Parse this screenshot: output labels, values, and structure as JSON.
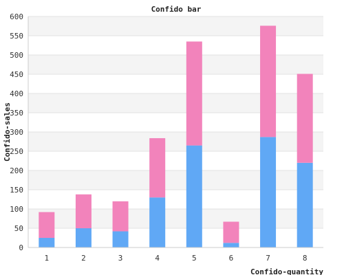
{
  "chart_data": {
    "type": "bar",
    "stacked": true,
    "title": "Confido bar",
    "xlabel": "Confido-quantity",
    "ylabel": "Confido-sales",
    "categories": [
      "1",
      "2",
      "3",
      "4",
      "5",
      "6",
      "7",
      "8"
    ],
    "series": [
      {
        "values": [
          25,
          50,
          42,
          130,
          265,
          12,
          287,
          220
        ],
        "color": "#60a8f5"
      },
      {
        "values": [
          67,
          88,
          78,
          154,
          270,
          55,
          289,
          231
        ],
        "color": "#f283bb"
      }
    ],
    "ylim": [
      0,
      600
    ],
    "yticks": [
      "0",
      "50",
      "100",
      "150",
      "200",
      "250",
      "300",
      "350",
      "400",
      "450",
      "500",
      "550",
      "600"
    ],
    "grid": true,
    "band_colors": [
      "#ffffff",
      "#f4f4f4"
    ],
    "grid_color": "#e2e2e2"
  }
}
